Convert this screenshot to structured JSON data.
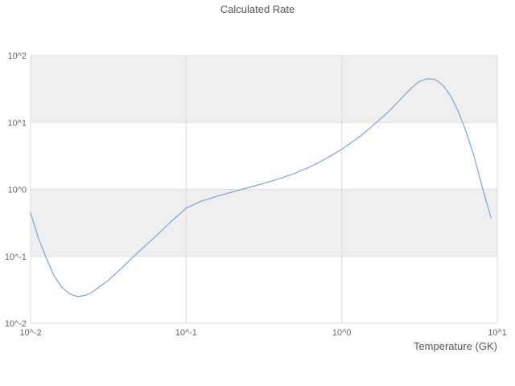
{
  "chart_data": {
    "type": "line",
    "title": "Calculated Rate",
    "xlabel": "Temperature (GK)",
    "ylabel": "",
    "x_scale": "log",
    "y_scale": "log",
    "xlim": [
      0.01,
      10
    ],
    "ylim": [
      0.01,
      100
    ],
    "grid": true,
    "legend": "none",
    "band_colors": [
      "#ffffff",
      "#efefef"
    ],
    "grid_color": "#dddddd",
    "tick_label_color": "#666666",
    "title_color": "#555555",
    "x_ticks": [
      {
        "value": 0.01,
        "label": "10^-2"
      },
      {
        "value": 0.1,
        "label": "10^-1"
      },
      {
        "value": 1,
        "label": "10^0"
      },
      {
        "value": 10,
        "label": "10^1"
      }
    ],
    "y_ticks": [
      {
        "value": 0.01,
        "label": "10^-2"
      },
      {
        "value": 0.1,
        "label": "10^-1"
      },
      {
        "value": 1,
        "label": "10^0"
      },
      {
        "value": 10,
        "label": "10^1"
      },
      {
        "value": 100,
        "label": "10^2"
      }
    ],
    "series": [
      {
        "name": "calculated-rate",
        "color": "#73a9d4",
        "points": [
          [
            0.01,
            0.447
          ],
          [
            0.0112,
            0.19
          ],
          [
            0.0126,
            0.095
          ],
          [
            0.0141,
            0.052
          ],
          [
            0.0158,
            0.035
          ],
          [
            0.0178,
            0.0275
          ],
          [
            0.02,
            0.025
          ],
          [
            0.0224,
            0.026
          ],
          [
            0.0251,
            0.0295
          ],
          [
            0.0316,
            0.0437
          ],
          [
            0.0398,
            0.072
          ],
          [
            0.0501,
            0.12
          ],
          [
            0.0631,
            0.195
          ],
          [
            0.0794,
            0.324
          ],
          [
            0.1,
            0.525
          ],
          [
            0.126,
            0.67
          ],
          [
            0.158,
            0.79
          ],
          [
            0.2,
            0.92
          ],
          [
            0.251,
            1.06
          ],
          [
            0.316,
            1.23
          ],
          [
            0.398,
            1.45
          ],
          [
            0.501,
            1.74
          ],
          [
            0.631,
            2.19
          ],
          [
            0.794,
            2.88
          ],
          [
            1.0,
            3.98
          ],
          [
            1.26,
            5.75
          ],
          [
            1.58,
            8.9
          ],
          [
            2.0,
            14.5
          ],
          [
            2.51,
            25
          ],
          [
            2.82,
            33
          ],
          [
            3.16,
            41
          ],
          [
            3.55,
            45
          ],
          [
            3.98,
            44
          ],
          [
            4.47,
            36
          ],
          [
            5.01,
            25
          ],
          [
            5.62,
            14.5
          ],
          [
            6.31,
            7.2
          ],
          [
            7.08,
            3.16
          ],
          [
            7.94,
            1.15
          ],
          [
            9.12,
            0.372
          ]
        ]
      }
    ]
  }
}
